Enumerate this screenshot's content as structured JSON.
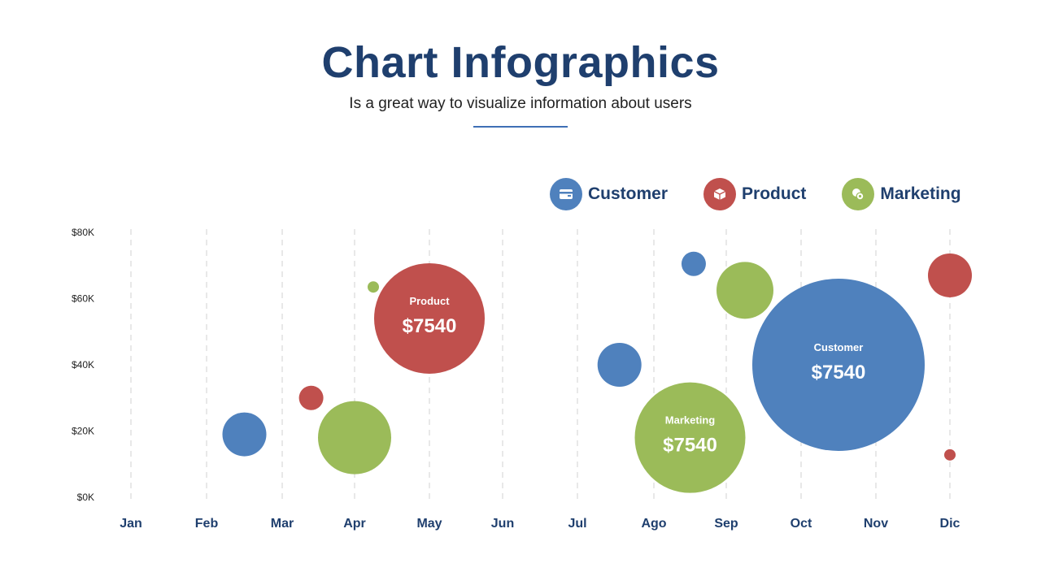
{
  "header": {
    "title": "Chart Infographics",
    "subtitle": "Is a great way to visualize information about users"
  },
  "colors": {
    "customer": "#4F81BD",
    "product": "#C0504D",
    "marketing": "#9BBB59",
    "title": "#1F3F6E"
  },
  "legend": [
    {
      "name": "Customer",
      "icon": "wallet-icon",
      "color": "#4F81BD"
    },
    {
      "name": "Product",
      "icon": "box-icon",
      "color": "#C0504D"
    },
    {
      "name": "Marketing",
      "icon": "coins-icon",
      "color": "#9BBB59"
    }
  ],
  "chart_data": {
    "type": "scatter",
    "categories": [
      "Jan",
      "Feb",
      "Mar",
      "Apr",
      "May",
      "Jun",
      "Jul",
      "Ago",
      "Sep",
      "Oct",
      "Nov",
      "Dic"
    ],
    "yticks": [
      "$0K",
      "$20K",
      "$40K",
      "$60K",
      "$80K"
    ],
    "ylim": [
      0,
      80000
    ],
    "grid": "vertical-dashed",
    "legend_position": "top-right",
    "series": [
      {
        "name": "Customer",
        "points": [
          {
            "x": 1.5,
            "y": 19000,
            "size": 27
          },
          {
            "x": 6.55,
            "y": 40000,
            "size": 27
          },
          {
            "x": 7.55,
            "y": 70500,
            "size": 15
          },
          {
            "x": 9.5,
            "y": 40000,
            "size": 106,
            "label": "Customer",
            "value": "$7540"
          }
        ]
      },
      {
        "name": "Product",
        "points": [
          {
            "x": 2.4,
            "y": 30000,
            "size": 15
          },
          {
            "x": 4.0,
            "y": 54000,
            "size": 68,
            "label": "Product",
            "value": "$7540"
          },
          {
            "x": 11.5,
            "y": 67000,
            "size": 27
          },
          {
            "x": 11.28,
            "y": 12800,
            "size": 7
          }
        ]
      },
      {
        "name": "Marketing",
        "points": [
          {
            "x": 3.25,
            "y": 63500,
            "size": 7
          },
          {
            "x": 3.0,
            "y": 18000,
            "size": 45
          },
          {
            "x": 7.5,
            "y": 18000,
            "size": 68,
            "label": "Marketing",
            "value": "$7540"
          },
          {
            "x": 8.25,
            "y": 62500,
            "size": 35
          }
        ]
      }
    ]
  }
}
